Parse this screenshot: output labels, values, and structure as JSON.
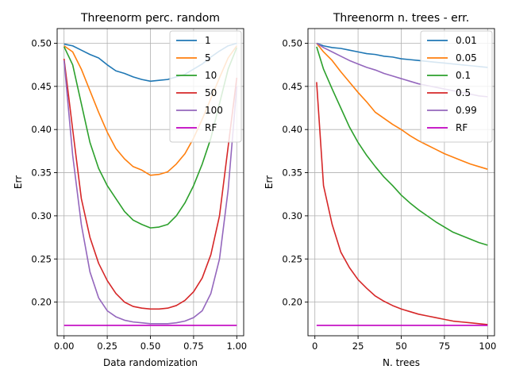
{
  "chart_data": [
    {
      "type": "line",
      "title": "Threenorm perc. random",
      "xlabel": "Data randomization",
      "ylabel": "Err",
      "xlim": [
        -0.04,
        1.04
      ],
      "ylim": [
        0.161,
        0.517
      ],
      "xticks": [
        0.0,
        0.25,
        0.5,
        0.75,
        1.0
      ],
      "xtick_labels": [
        "0.00",
        "0.25",
        "0.50",
        "0.75",
        "1.00"
      ],
      "yticks": [
        0.2,
        0.25,
        0.3,
        0.35,
        0.4,
        0.45,
        0.5
      ],
      "ytick_labels": [
        "0.20",
        "0.25",
        "0.30",
        "0.35",
        "0.40",
        "0.45",
        "0.50"
      ],
      "grid": true,
      "legend_position": "top-right",
      "x": [
        0.0,
        0.05,
        0.1,
        0.15,
        0.2,
        0.25,
        0.3,
        0.35,
        0.4,
        0.45,
        0.5,
        0.55,
        0.6,
        0.65,
        0.7,
        0.75,
        0.8,
        0.85,
        0.9,
        0.95,
        1.0
      ],
      "series": [
        {
          "name": "1",
          "color": "#1f77b4",
          "values": [
            0.499,
            0.497,
            0.492,
            0.487,
            0.483,
            0.475,
            0.468,
            0.465,
            0.461,
            0.458,
            0.456,
            0.457,
            0.458,
            0.461,
            0.464,
            0.47,
            0.476,
            0.484,
            0.491,
            0.497,
            0.5
          ]
        },
        {
          "name": "5",
          "color": "#ff7f0e",
          "values": [
            0.497,
            0.49,
            0.47,
            0.445,
            0.42,
            0.397,
            0.378,
            0.366,
            0.357,
            0.353,
            0.347,
            0.348,
            0.351,
            0.36,
            0.372,
            0.39,
            0.412,
            0.436,
            0.46,
            0.483,
            0.497
          ]
        },
        {
          "name": "10",
          "color": "#2ca02c",
          "values": [
            0.496,
            0.475,
            0.43,
            0.385,
            0.355,
            0.335,
            0.32,
            0.305,
            0.295,
            0.29,
            0.286,
            0.287,
            0.29,
            0.3,
            0.315,
            0.335,
            0.36,
            0.39,
            0.43,
            0.47,
            0.495
          ]
        },
        {
          "name": "50",
          "color": "#d62728",
          "values": [
            0.482,
            0.4,
            0.32,
            0.275,
            0.245,
            0.225,
            0.21,
            0.2,
            0.195,
            0.193,
            0.192,
            0.192,
            0.193,
            0.196,
            0.202,
            0.212,
            0.228,
            0.255,
            0.3,
            0.38,
            0.46
          ]
        },
        {
          "name": "100",
          "color": "#9467bd",
          "values": [
            0.48,
            0.37,
            0.29,
            0.235,
            0.205,
            0.19,
            0.183,
            0.179,
            0.177,
            0.176,
            0.175,
            0.175,
            0.175,
            0.176,
            0.178,
            0.182,
            0.19,
            0.21,
            0.25,
            0.33,
            0.45
          ]
        },
        {
          "name": "RF",
          "color": "#c000c0",
          "values": [
            0.173,
            0.173,
            0.173,
            0.173,
            0.173,
            0.173,
            0.173,
            0.173,
            0.173,
            0.173,
            0.173,
            0.173,
            0.173,
            0.173,
            0.173,
            0.173,
            0.173,
            0.173,
            0.173,
            0.173,
            0.173
          ]
        }
      ]
    },
    {
      "type": "line",
      "title": "Threenorm n. trees - err.",
      "xlabel": "N. trees",
      "ylabel": "Err",
      "xlim": [
        -4,
        104
      ],
      "ylim": [
        0.161,
        0.517
      ],
      "xticks": [
        0,
        25,
        50,
        75,
        100
      ],
      "xtick_labels": [
        "0",
        "25",
        "50",
        "75",
        "100"
      ],
      "yticks": [
        0.2,
        0.25,
        0.3,
        0.35,
        0.4,
        0.45,
        0.5
      ],
      "ytick_labels": [
        "0.20",
        "0.25",
        "0.30",
        "0.35",
        "0.40",
        "0.45",
        "0.50"
      ],
      "grid": true,
      "legend_position": "top-right",
      "x": [
        1,
        5,
        10,
        15,
        20,
        25,
        30,
        35,
        40,
        45,
        50,
        55,
        60,
        65,
        70,
        75,
        80,
        85,
        90,
        95,
        100
      ],
      "series": [
        {
          "name": "0.01",
          "color": "#1f77b4",
          "values": [
            0.5,
            0.497,
            0.495,
            0.494,
            0.492,
            0.49,
            0.488,
            0.487,
            0.485,
            0.484,
            0.482,
            0.481,
            0.48,
            0.479,
            0.478,
            0.477,
            0.476,
            0.475,
            0.474,
            0.473,
            0.472
          ]
        },
        {
          "name": "0.05",
          "color": "#ff7f0e",
          "values": [
            0.5,
            0.49,
            0.48,
            0.467,
            0.455,
            0.443,
            0.432,
            0.42,
            0.413,
            0.406,
            0.4,
            0.393,
            0.387,
            0.382,
            0.377,
            0.372,
            0.368,
            0.364,
            0.36,
            0.357,
            0.354
          ]
        },
        {
          "name": "0.1",
          "color": "#2ca02c",
          "values": [
            0.496,
            0.47,
            0.447,
            0.425,
            0.403,
            0.385,
            0.37,
            0.357,
            0.345,
            0.335,
            0.324,
            0.315,
            0.307,
            0.3,
            0.293,
            0.287,
            0.281,
            0.277,
            0.273,
            0.269,
            0.266
          ]
        },
        {
          "name": "0.5",
          "color": "#d62728",
          "values": [
            0.455,
            0.335,
            0.29,
            0.258,
            0.24,
            0.226,
            0.216,
            0.207,
            0.201,
            0.196,
            0.192,
            0.189,
            0.186,
            0.184,
            0.182,
            0.18,
            0.178,
            0.177,
            0.176,
            0.175,
            0.174
          ]
        },
        {
          "name": "0.99",
          "color": "#9467bd",
          "values": [
            0.5,
            0.495,
            0.49,
            0.485,
            0.48,
            0.476,
            0.472,
            0.469,
            0.465,
            0.462,
            0.459,
            0.456,
            0.453,
            0.451,
            0.449,
            0.447,
            0.445,
            0.443,
            0.441,
            0.439,
            0.438
          ]
        },
        {
          "name": "RF",
          "color": "#c000c0",
          "values": [
            0.173,
            0.173,
            0.173,
            0.173,
            0.173,
            0.173,
            0.173,
            0.173,
            0.173,
            0.173,
            0.173,
            0.173,
            0.173,
            0.173,
            0.173,
            0.173,
            0.173,
            0.173,
            0.173,
            0.173,
            0.173
          ]
        }
      ]
    }
  ]
}
